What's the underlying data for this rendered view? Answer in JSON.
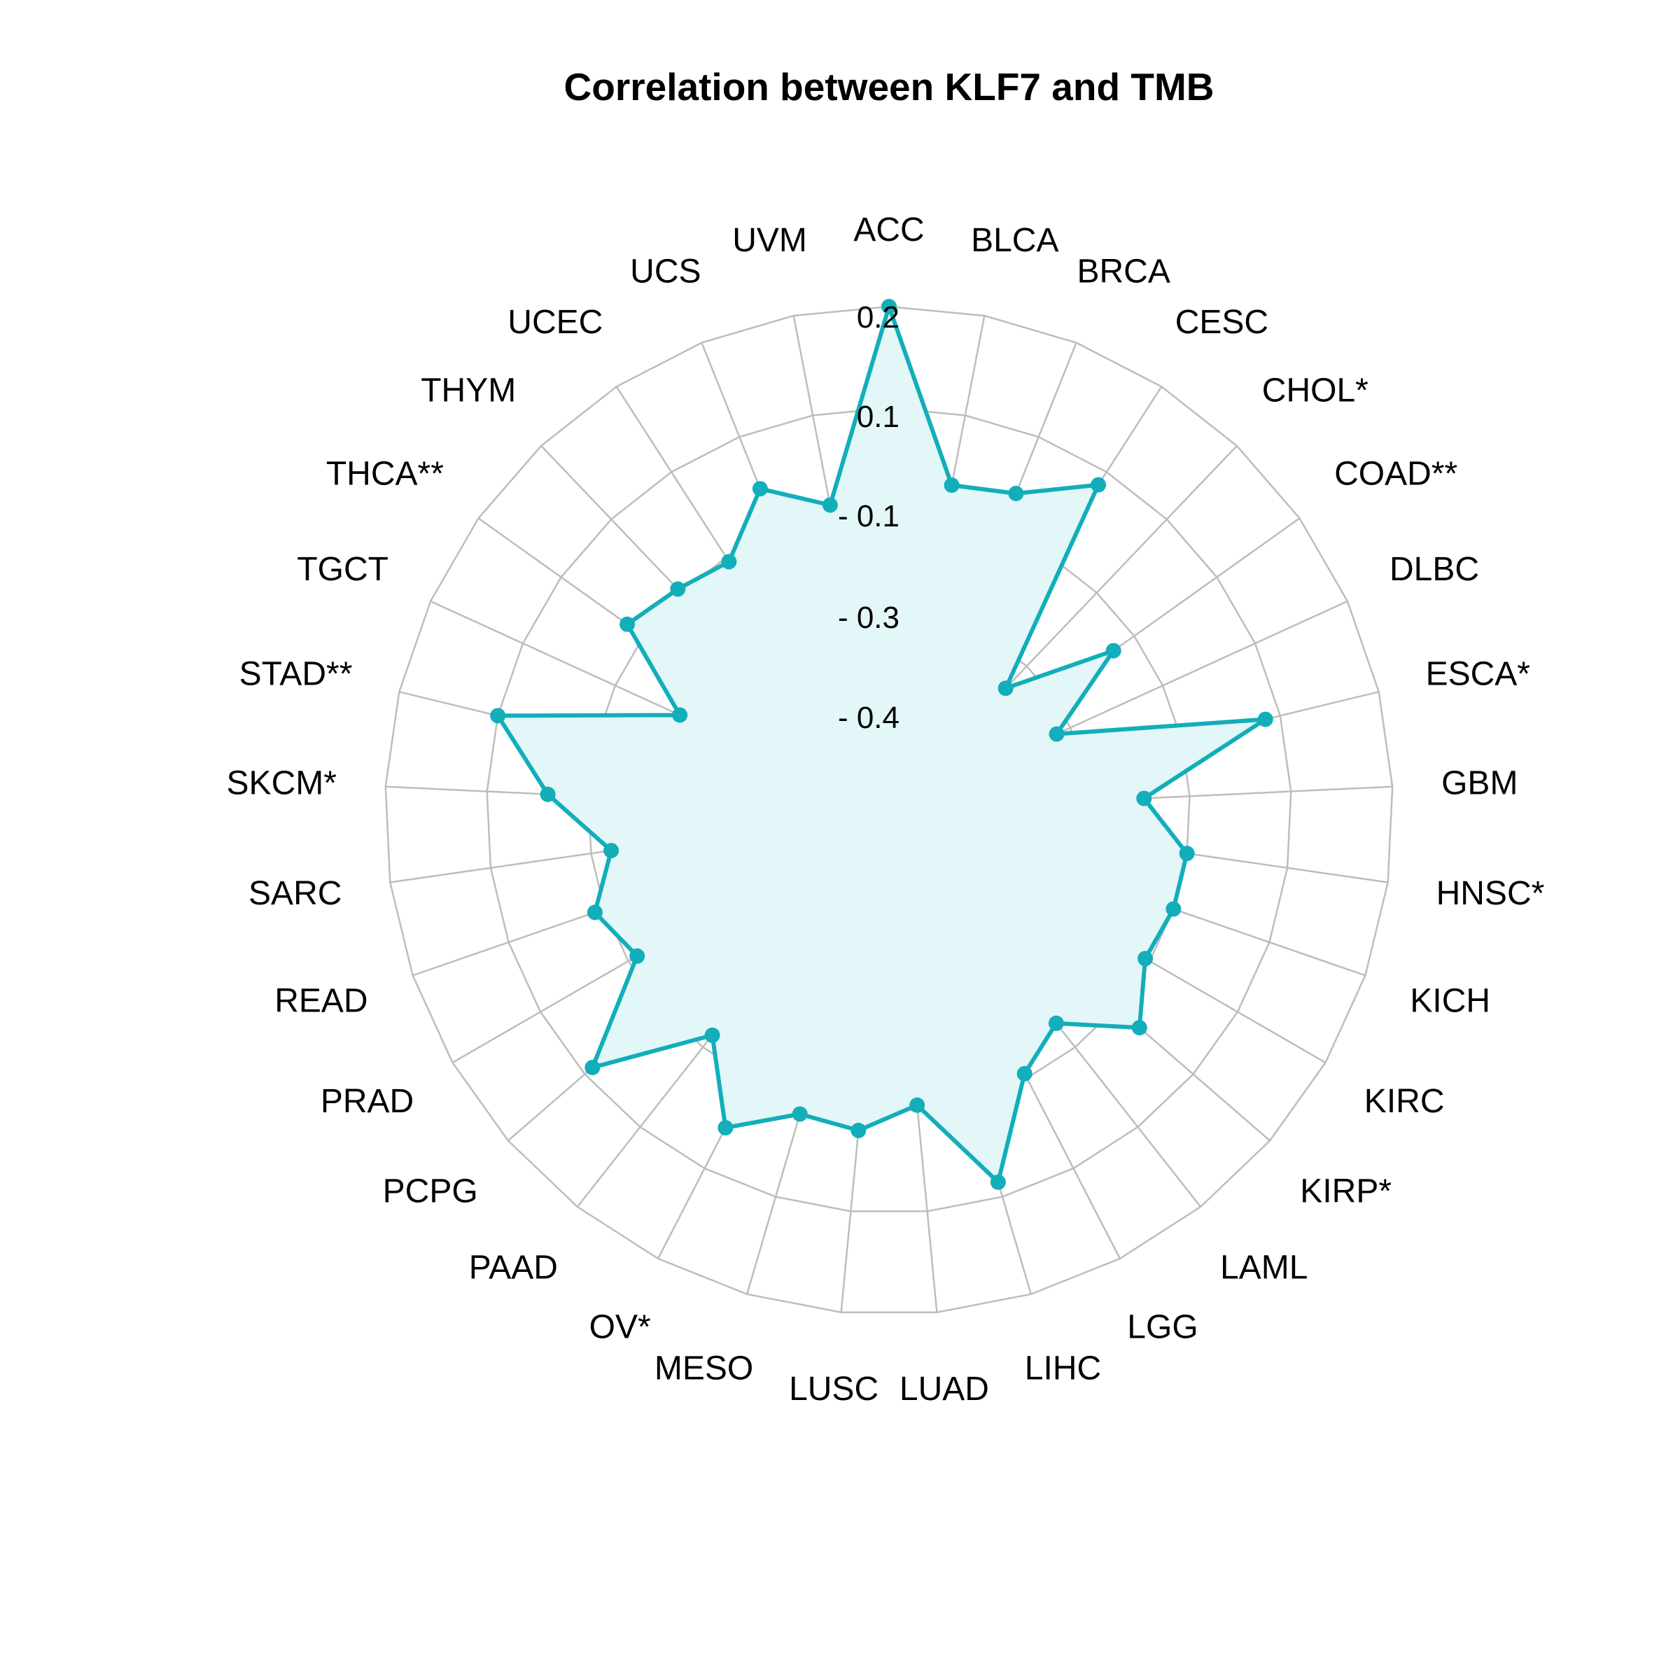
{
  "chart_data": {
    "type": "radar",
    "title": "Correlation between KLF7 and TMB",
    "categories": [
      "ACC",
      "BLCA",
      "BRCA",
      "CESC",
      "CHOL*",
      "COAD**",
      "DLBC",
      "ESCA*",
      "GBM",
      "HNSC*",
      "KICH",
      "KIRC",
      "KIRP*",
      "LAML",
      "LGG",
      "LIHC",
      "LUAD",
      "LUSC",
      "MESO",
      "OV*",
      "PAAD",
      "PCPG",
      "PRAD",
      "READ",
      "SARC",
      "SKCM*",
      "STAD**",
      "TGCT",
      "THCA**",
      "THYM",
      "UCEC",
      "UCS",
      "UVM"
    ],
    "values": [
      0.2,
      -0.14,
      -0.12,
      -0.03,
      -0.46,
      -0.25,
      -0.43,
      -0.03,
      -0.29,
      -0.2,
      -0.2,
      -0.21,
      -0.14,
      -0.26,
      -0.21,
      -0.03,
      -0.21,
      -0.16,
      -0.17,
      -0.09,
      -0.23,
      -0.02,
      -0.22,
      -0.18,
      -0.24,
      -0.12,
      0.0,
      -0.34,
      -0.16,
      -0.19,
      -0.21,
      -0.11,
      -0.18
    ],
    "axis_ticks": [
      {
        "value": 0.2,
        "label": "0.2"
      },
      {
        "value": 0.1,
        "label": "0.1"
      },
      {
        "value": -0.1,
        "label": "- 0.1"
      },
      {
        "value": -0.3,
        "label": "- 0.3"
      },
      {
        "value": -0.4,
        "label": "- 0.4"
      }
    ],
    "grid": true,
    "colors": {
      "line": "#12aeb9",
      "fill": "#e3f6f8",
      "grid": "#bdbdbd"
    }
  }
}
